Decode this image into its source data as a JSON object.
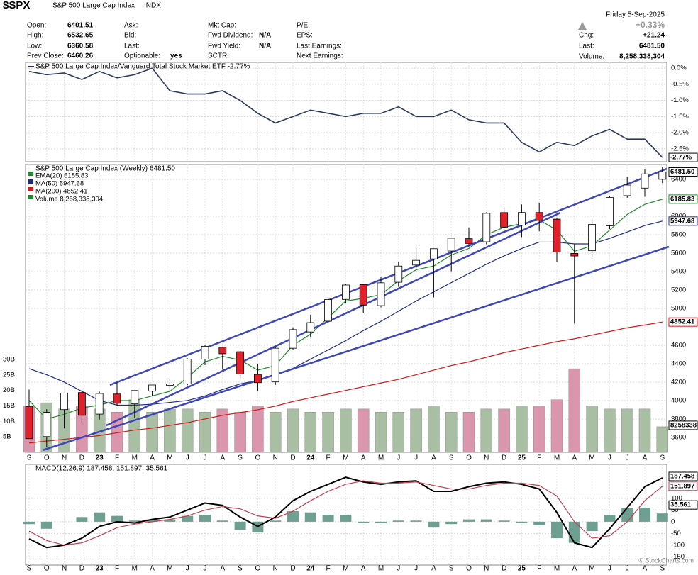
{
  "header": {
    "symbol": "$SPX",
    "name": "S&P 500 Large Cap Index",
    "exchange": "INDX",
    "columns": [
      [
        [
          "Open:",
          "6401.51"
        ],
        [
          "High:",
          "6532.65"
        ],
        [
          "Low:",
          "6360.58"
        ],
        [
          "Prev Close:",
          "6460.26"
        ]
      ],
      [
        [
          "Ask:"
        ],
        [
          "Bid:"
        ],
        [
          "Last:"
        ],
        [
          "Optionable:",
          "yes"
        ]
      ],
      [
        [
          "Mkt Cap:"
        ],
        [
          "Fwd Dividend:",
          "N/A"
        ],
        [
          "Fwd Yield:",
          "N/A"
        ],
        [
          "SCTR:"
        ]
      ],
      [
        [
          "P/E:"
        ],
        [
          "EPS:"
        ],
        [
          "Last Earnings:"
        ],
        [
          "Next Earnings:"
        ]
      ]
    ],
    "date": "Friday  5-Sep-2025",
    "change_pct": "+0.33%",
    "right_fields": [
      [
        "Chg:",
        "+21.24"
      ],
      [
        "Last:",
        "6481.50"
      ],
      [
        "Volume:",
        "8,258,338,304"
      ]
    ],
    "credit": "© StockCharts.com"
  },
  "chart_data": [
    {
      "type": "line",
      "title": "S&P 500 Large Cap Index/Vanguard Total Stock Market ETF -2.77%",
      "color": "#2b3a5c",
      "values": [
        -0.1,
        -0.2,
        -0.15,
        -0.35,
        -0.1,
        -0.3,
        -0.2,
        0.0,
        -0.7,
        -0.8,
        -0.8,
        -0.7,
        -1.0,
        -1.4,
        -1.7,
        -1.5,
        -1.3,
        -1.4,
        -1.5,
        -1.4,
        -1.4,
        -1.2,
        -1.5,
        -1.5,
        -1.3,
        -1.6,
        -1.7,
        -1.7,
        -2.3,
        -2.6,
        -2.3,
        -2.4,
        -2.1,
        -1.9,
        -2.2,
        -2.2,
        -2.77
      ],
      "last_label": "-2.77%",
      "ylim": [
        -2.9,
        0.18
      ],
      "yticks": [
        {
          "value": 0,
          "label": "0.0%"
        },
        {
          "value": -0.5,
          "label": "-0.5%"
        },
        {
          "value": -1.0,
          "label": "-1.0%"
        },
        {
          "value": -1.5,
          "label": "-1.5%"
        },
        {
          "value": -2.0,
          "label": "-2.0%"
        },
        {
          "value": -2.5,
          "label": "-2.5%"
        }
      ],
      "grid": true
    },
    {
      "type": "candlestick",
      "title": "S&P 500 Large Cap Index (Weekly) 6481.50",
      "last_label": "6481.50",
      "categories": [
        "S",
        "O",
        "N",
        "D",
        "23",
        "F",
        "M",
        "A",
        "M",
        "J",
        "J",
        "A",
        "S",
        "O",
        "N",
        "D",
        "24",
        "F",
        "M",
        "A",
        "M",
        "J",
        "J",
        "A",
        "S",
        "O",
        "N",
        "D",
        "25",
        "F",
        "M",
        "A",
        "M",
        "J",
        "J",
        "A",
        "S"
      ],
      "open": [
        3937,
        3609,
        3902,
        4087,
        3853,
        4071,
        3964,
        4102,
        4166,
        4181,
        4450,
        4579,
        4530,
        4284,
        4202,
        4568,
        4745,
        4862,
        5098,
        5258,
        5030,
        5284,
        5471,
        5537,
        5623,
        5757,
        5723,
        6040,
        5904,
        6041,
        5969,
        5597,
        5626,
        5897,
        6224,
        6306,
        6401.51
      ],
      "high": [
        4119,
        3906,
        4080,
        4101,
        4095,
        4195,
        4110,
        4170,
        4232,
        4458,
        4608,
        4584,
        4541,
        4393,
        4587,
        4794,
        4932,
        5111,
        5265,
        5264,
        5342,
        5506,
        5669,
        5651,
        5768,
        5879,
        6044,
        6100,
        6128,
        6147,
        5987,
        5696,
        5968,
        6215,
        6427,
        6509,
        6532.65
      ],
      "low": [
        3584,
        3491,
        3698,
        3764,
        3794,
        3943,
        3809,
        4049,
        4048,
        4166,
        4385,
        4335,
        4238,
        4104,
        4168,
        4547,
        4683,
        4853,
        5057,
        4954,
        5012,
        5235,
        5390,
        5119,
        5403,
        5674,
        5697,
        5832,
        5773,
        5837,
        5505,
        4835,
        5557,
        5862,
        6201,
        6212,
        6360.58
      ],
      "close": [
        3586,
        3872,
        4080,
        3840,
        4077,
        3970,
        4109,
        4169,
        4180,
        4450,
        4589,
        4508,
        4288,
        4194,
        4568,
        4770,
        4846,
        5096,
        5254,
        5036,
        5278,
        5460,
        5522,
        5648,
        5762,
        5705,
        6032,
        5882,
        6041,
        5955,
        5612,
        5569,
        5912,
        6205,
        6339,
        6460,
        6481.5
      ],
      "up_color": "#ffffff",
      "down_color": "#e0202a",
      "series": [
        {
          "name": "EMA(20) 6185.83",
          "color": "#1f8a2c",
          "last_label": "6185.83",
          "values": [
            4000,
            3800,
            3850,
            3920,
            3950,
            4000,
            4000,
            4050,
            4100,
            4250,
            4420,
            4480,
            4440,
            4330,
            4380,
            4600,
            4720,
            4900,
            5080,
            5110,
            5150,
            5300,
            5420,
            5460,
            5580,
            5650,
            5800,
            5880,
            5920,
            5960,
            5850,
            5620,
            5680,
            5850,
            6020,
            6130,
            6185.83
          ]
        },
        {
          "name": "MA(50) 5947.68",
          "color": "#1c2a8a",
          "last_label": "5947.68",
          "values": [
            4346,
            4280,
            4200,
            4100,
            4000,
            3950,
            3950,
            3960,
            3980,
            4000,
            4050,
            4120,
            4180,
            4220,
            4280,
            4350,
            4450,
            4550,
            4650,
            4760,
            4860,
            4970,
            5080,
            5180,
            5280,
            5380,
            5480,
            5570,
            5650,
            5720,
            5720,
            5700,
            5700,
            5760,
            5830,
            5900,
            5947.68
          ]
        },
        {
          "name": "MA(200) 4852.41",
          "color": "#cc1a1a",
          "last_label": "4852.41",
          "values": [
            3540,
            3560,
            3580,
            3600,
            3620,
            3650,
            3680,
            3700,
            3730,
            3760,
            3800,
            3840,
            3870,
            3900,
            3940,
            3990,
            4030,
            4070,
            4110,
            4150,
            4190,
            4230,
            4280,
            4330,
            4380,
            4420,
            4470,
            4520,
            4560,
            4600,
            4640,
            4670,
            4710,
            4750,
            4790,
            4820,
            4852.41
          ]
        }
      ],
      "volume": {
        "name": "Volume 8,258,338,304",
        "last_label": "8258338",
        "up_color": "#a9bfa3",
        "down_color": "#d996ad",
        "values": [
          15000000000,
          16000000000,
          14000000000,
          15000000000,
          14000000000,
          13000000000,
          17000000000,
          13000000000,
          14000000000,
          14000000000,
          13000000000,
          14000000000,
          13000000000,
          15000000000,
          13000000000,
          14000000000,
          13000000000,
          13000000000,
          14000000000,
          14000000000,
          13000000000,
          13000000000,
          14000000000,
          15000000000,
          13000000000,
          13000000000,
          14000000000,
          14000000000,
          15000000000,
          15000000000,
          17000000000,
          27000000000,
          15000000000,
          14000000000,
          14000000000,
          14000000000,
          8258338304
        ],
        "ylim": [
          0,
          30000000000
        ],
        "yticks": [
          {
            "value": 5000000000,
            "label": "5B"
          },
          {
            "value": 10000000000,
            "label": "10B"
          },
          {
            "value": 15000000000,
            "label": "15B"
          },
          {
            "value": 20000000000,
            "label": "20B"
          },
          {
            "value": 25000000000,
            "label": "25B"
          },
          {
            "value": 30000000000,
            "label": "30B"
          }
        ]
      },
      "ylim": [
        3438,
        6562
      ],
      "yticks": [
        3600,
        3800,
        4000,
        4200,
        4400,
        4600,
        5000,
        5200,
        5400,
        5600,
        5800,
        6000,
        6400
      ],
      "grid": true
    },
    {
      "type": "macd",
      "title": "MACD(12,26,9) 187.458, 151.897, 35.561",
      "categories": [
        "S",
        "O",
        "N",
        "D",
        "23",
        "F",
        "M",
        "A",
        "M",
        "J",
        "J",
        "A",
        "S",
        "O",
        "N",
        "D",
        "24",
        "F",
        "M",
        "A",
        "M",
        "J",
        "J",
        "A",
        "S",
        "O",
        "N",
        "D",
        "25",
        "F",
        "M",
        "A",
        "M",
        "J",
        "J",
        "A",
        "S"
      ],
      "series": [
        {
          "name": "MACD",
          "color": "#000000",
          "last_label": "187.458",
          "values": [
            -73,
            -110,
            -100,
            -70,
            -20,
            0,
            -5,
            10,
            20,
            50,
            80,
            70,
            20,
            -20,
            20,
            90,
            130,
            160,
            190,
            170,
            160,
            170,
            175,
            130,
            130,
            150,
            165,
            170,
            160,
            140,
            40,
            -90,
            -110,
            -30,
            60,
            150,
            187.458
          ]
        },
        {
          "name": "Signal",
          "color": "#c04050",
          "last_label": "151.897",
          "values": [
            -40,
            -80,
            -100,
            -90,
            -60,
            -25,
            -10,
            0,
            10,
            25,
            50,
            65,
            55,
            25,
            15,
            45,
            90,
            130,
            160,
            175,
            165,
            165,
            170,
            155,
            140,
            140,
            155,
            165,
            165,
            155,
            110,
            0,
            -70,
            -60,
            0,
            90,
            151.897
          ]
        }
      ],
      "histogram": {
        "color": "#6f9f91",
        "last_label": "35.561",
        "values": [
          -10,
          -30,
          0,
          20,
          40,
          25,
          5,
          10,
          10,
          25,
          30,
          5,
          -35,
          -45,
          5,
          45,
          40,
          30,
          30,
          -5,
          -5,
          5,
          5,
          -25,
          -10,
          10,
          10,
          5,
          -5,
          -15,
          -70,
          -90,
          -40,
          30,
          60,
          60,
          35.561
        ]
      },
      "ylim": [
        -185,
        245
      ],
      "yticks": [
        100,
        50,
        0,
        -50,
        -100,
        -150
      ],
      "grid": true
    }
  ]
}
